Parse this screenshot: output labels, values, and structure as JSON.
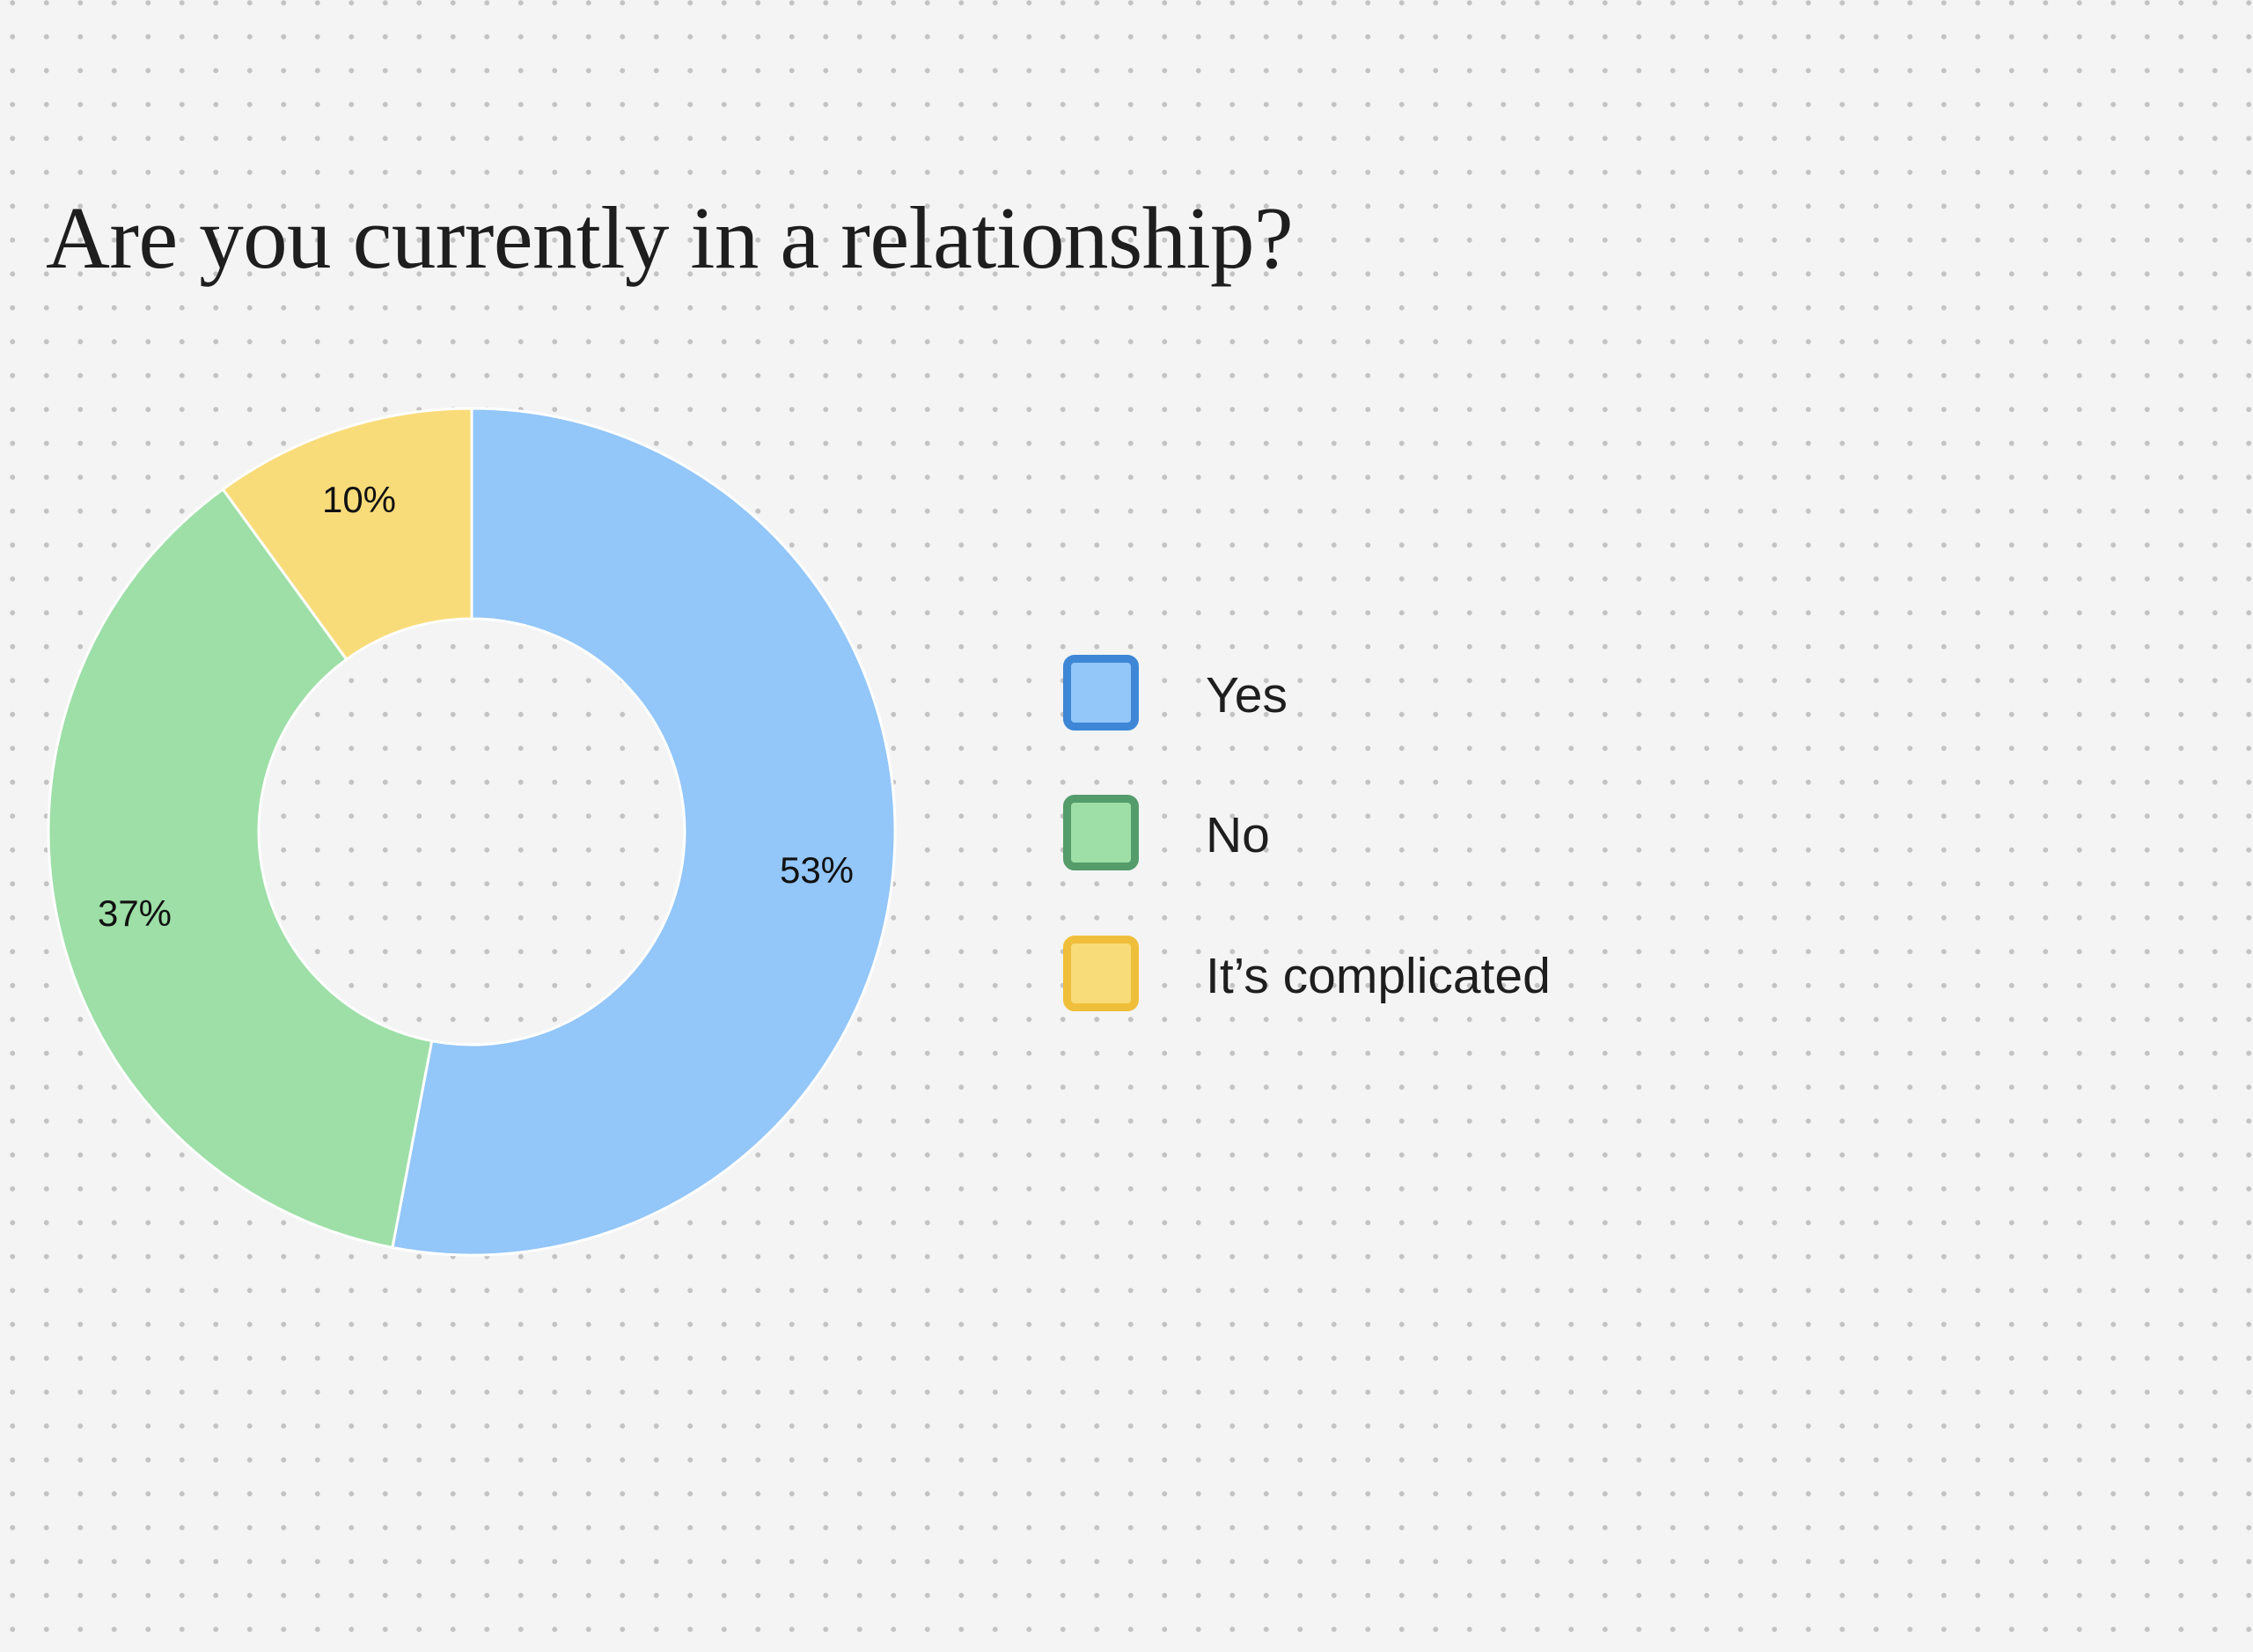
{
  "title": "Are you currently in a relationship?",
  "chart_data": {
    "type": "pie",
    "variant": "donut",
    "title": "Are you currently in a relationship?",
    "categories": [
      "Yes",
      "No",
      "It’s complicated"
    ],
    "values": [
      53,
      37,
      10
    ],
    "labels": [
      "53%",
      "37%",
      "10%"
    ],
    "unit": "%",
    "start_angle": "top (12 o'clock), clockwise",
    "legend_position": "right",
    "colors": {
      "fills": [
        "#93c6f9",
        "#9ddfa7",
        "#f9dc7a"
      ],
      "legend_borders": [
        "#3d87d6",
        "#559c6b",
        "#efbf3b"
      ]
    },
    "grid": false
  },
  "legend": {
    "items": [
      {
        "label": "Yes",
        "fill": "#93c6f9",
        "border": "#3d87d6"
      },
      {
        "label": "No",
        "fill": "#9ddfa7",
        "border": "#559c6b"
      },
      {
        "label": "It’s complicated",
        "fill": "#f9dc7a",
        "border": "#efbf3b"
      }
    ]
  },
  "slices": [
    {
      "label": "53%"
    },
    {
      "label": "37%"
    },
    {
      "label": "10%"
    }
  ],
  "colors": {
    "background": "#f4f4f4",
    "dot": "#c3c3c3",
    "text": "#1e1e1e"
  }
}
